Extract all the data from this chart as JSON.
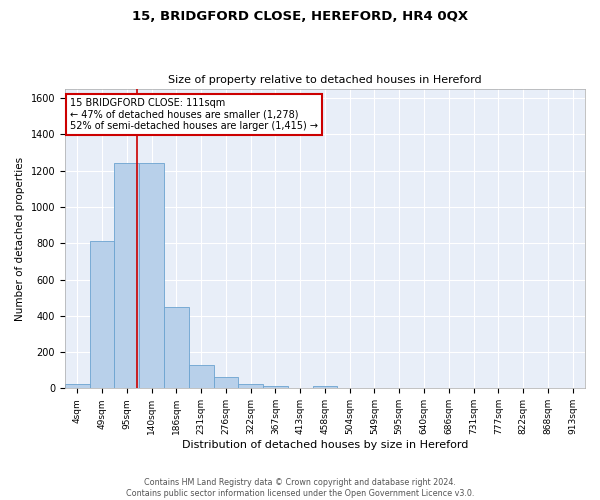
{
  "title": "15, BRIDGFORD CLOSE, HEREFORD, HR4 0QX",
  "subtitle": "Size of property relative to detached houses in Hereford",
  "xlabel": "Distribution of detached houses by size in Hereford",
  "ylabel": "Number of detached properties",
  "bar_color": "#b8d0ea",
  "bar_edge_color": "#6ba3d0",
  "background_color": "#e8eef8",
  "grid_color": "#ffffff",
  "bin_labels": [
    "4sqm",
    "49sqm",
    "95sqm",
    "140sqm",
    "186sqm",
    "231sqm",
    "276sqm",
    "322sqm",
    "367sqm",
    "413sqm",
    "458sqm",
    "504sqm",
    "549sqm",
    "595sqm",
    "640sqm",
    "686sqm",
    "731sqm",
    "777sqm",
    "822sqm",
    "868sqm",
    "913sqm"
  ],
  "bar_heights": [
    25,
    810,
    1240,
    1240,
    450,
    130,
    60,
    25,
    15,
    0,
    15,
    0,
    0,
    0,
    0,
    0,
    0,
    0,
    0,
    0,
    0
  ],
  "red_line_x": 2.4,
  "annotation_text": "15 BRIDGFORD CLOSE: 111sqm\n← 47% of detached houses are smaller (1,278)\n52% of semi-detached houses are larger (1,415) →",
  "annotation_box_color": "#ffffff",
  "annotation_edge_color": "#cc0000",
  "ylim": [
    0,
    1650
  ],
  "yticks": [
    0,
    200,
    400,
    600,
    800,
    1000,
    1200,
    1400,
    1600
  ],
  "footnote": "Contains HM Land Registry data © Crown copyright and database right 2024.\nContains public sector information licensed under the Open Government Licence v3.0."
}
